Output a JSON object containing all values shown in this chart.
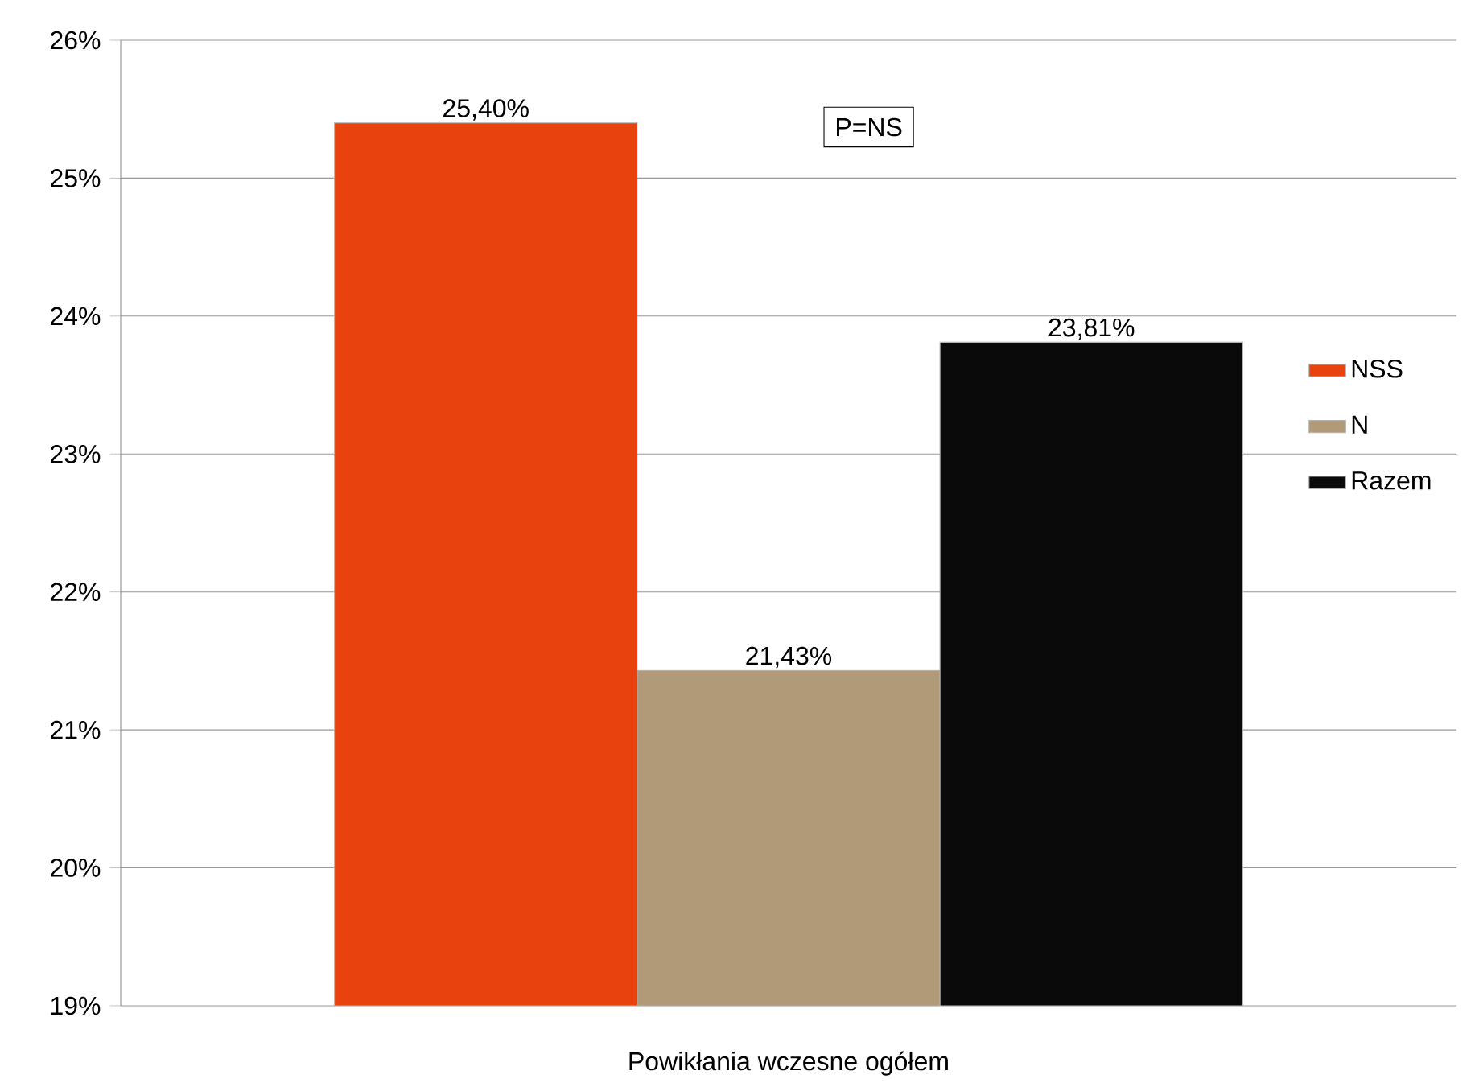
{
  "chart_data": {
    "type": "bar",
    "categories": [
      "Powikłania wczesne ogółem"
    ],
    "series": [
      {
        "name": "NSS",
        "color": "#e8430f",
        "values": [
          25.4
        ],
        "value_labels": [
          "25,40%"
        ]
      },
      {
        "name": "N",
        "color": "#b09a78",
        "values": [
          21.43
        ],
        "value_labels": [
          "21,43%"
        ]
      },
      {
        "name": "Razem",
        "color": "#0a0a0a",
        "values": [
          23.81
        ],
        "value_labels": [
          "23,81%"
        ]
      }
    ],
    "ylim": [
      19,
      26
    ],
    "yticks": [
      {
        "value": 19,
        "label": "19%"
      },
      {
        "value": 20,
        "label": "20%"
      },
      {
        "value": 21,
        "label": "21%"
      },
      {
        "value": 22,
        "label": "22%"
      },
      {
        "value": 23,
        "label": "23%"
      },
      {
        "value": 24,
        "label": "24%"
      },
      {
        "value": 25,
        "label": "25%"
      },
      {
        "value": 26,
        "label": "26%"
      }
    ],
    "grid": "y",
    "legend": "right",
    "annotations": [
      "P=NS"
    ]
  }
}
